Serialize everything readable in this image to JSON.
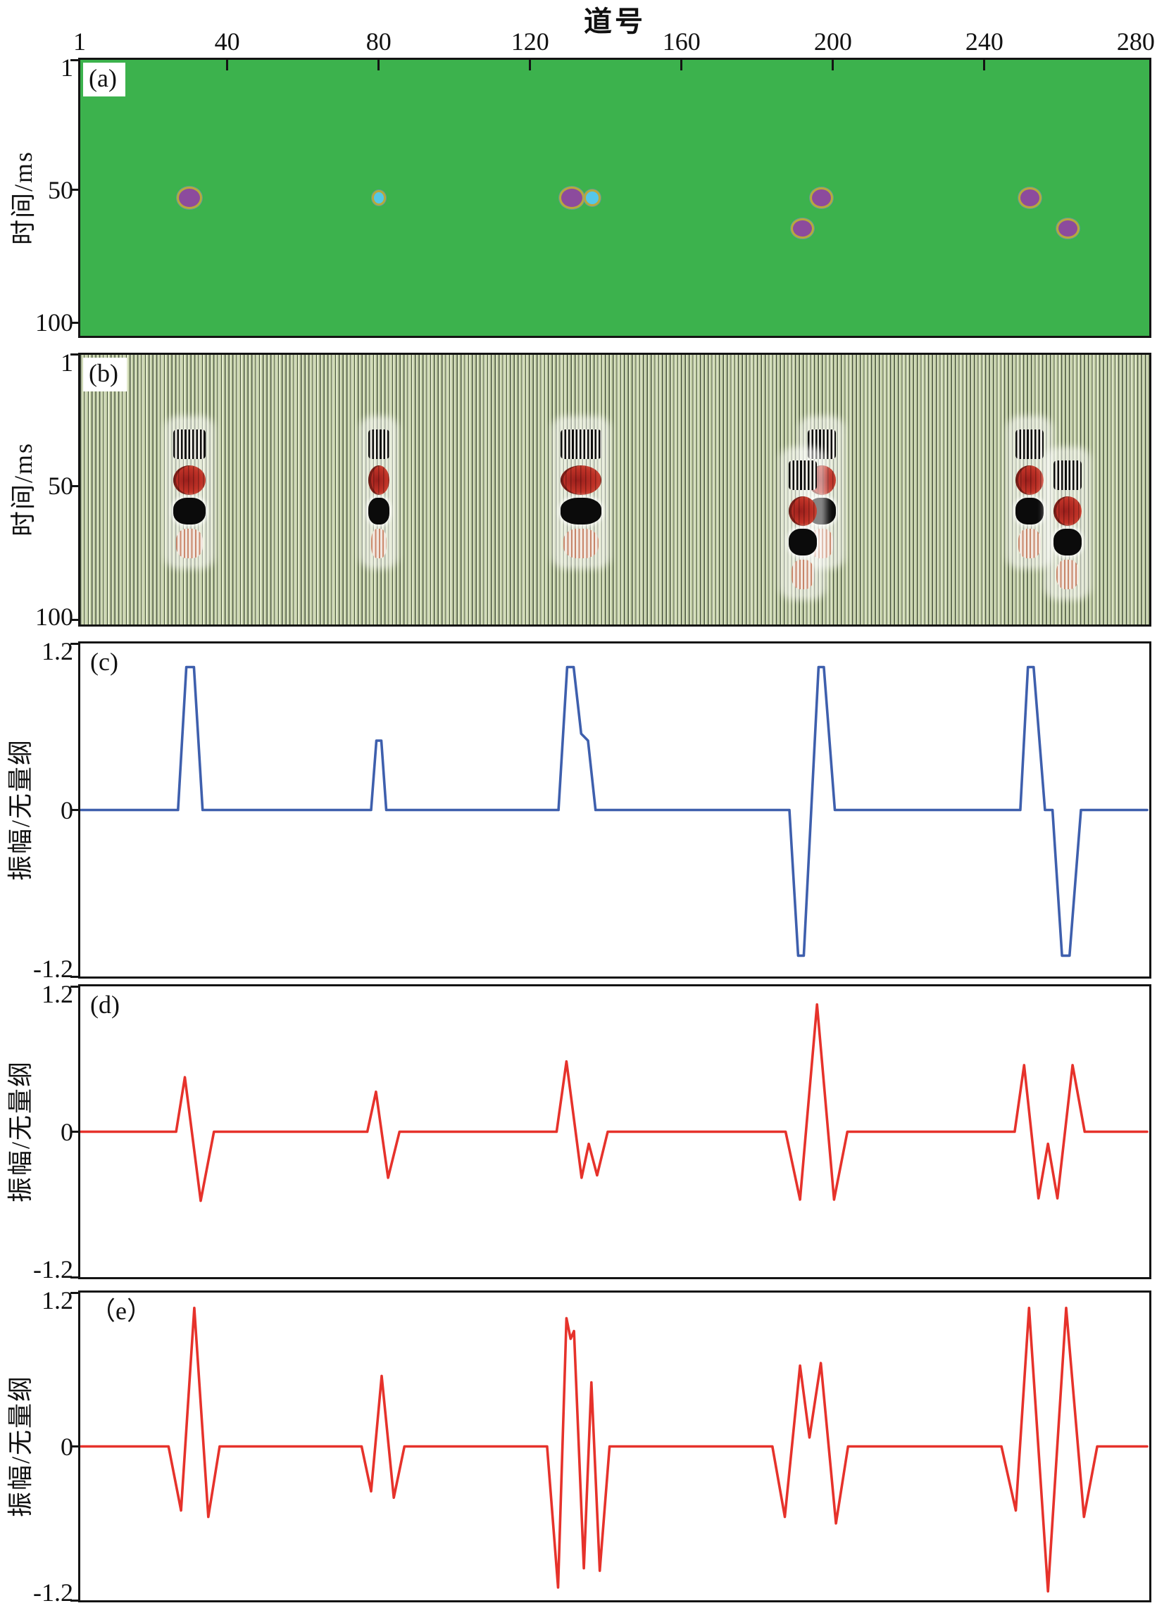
{
  "figure": {
    "title": "道号",
    "x_ticks": [
      "1",
      "40",
      "80",
      "120",
      "160",
      "200",
      "240",
      "280"
    ],
    "colors": {
      "model_background_green": "#3cb24d",
      "anomaly_purple": "#8c4b9d",
      "anomaly_cyan": "#55c7e9",
      "anomaly_ring_yellow": "#b8a93c",
      "curve_blue": "#3e5fad",
      "curve_red": "#e6322b",
      "wiggle_stripe_dark": "#49553e",
      "wiggle_stripe_light": "#e2e9cd",
      "frame_black": "#141414"
    }
  },
  "panels": {
    "a": {
      "tag": "(a)",
      "y_label": "时间/ms",
      "y_ticks": [
        "1",
        "50",
        "100"
      ]
    },
    "b": {
      "tag": "(b)",
      "y_label": "时间/ms",
      "y_ticks": [
        "1",
        "50",
        "100"
      ]
    },
    "c": {
      "tag": "(c)",
      "y_label": "振幅/无量纲",
      "y_ticks": [
        "1.2",
        "0",
        "-1.2"
      ]
    },
    "d": {
      "tag": "(d)",
      "y_label": "振幅/无量纲",
      "y_ticks": [
        "1.2",
        "0",
        "-1.2"
      ]
    },
    "e": {
      "tag": "（e）",
      "y_label": "振幅/无量纲",
      "y_ticks": [
        "1.2",
        "0",
        "-1.2"
      ]
    }
  },
  "chart_data": [
    {
      "panel": "a",
      "type": "heatmap",
      "title": "anomaly model section",
      "xlabel": "道号",
      "ylabel": "时间/ms",
      "x_range": [
        1,
        280
      ],
      "y_range": [
        1,
        100
      ],
      "background_value_color": "#3cb24d",
      "anomalies": [
        {
          "trace": 30,
          "time_ms": 53,
          "color": "purple",
          "w": 36,
          "h": 32
        },
        {
          "trace": 80,
          "time_ms": 53,
          "color": "cyan",
          "w": 20,
          "h": 22
        },
        {
          "trace": 131,
          "time_ms": 53,
          "color": "purple",
          "w": 36,
          "h": 32
        },
        {
          "trace": 136.5,
          "time_ms": 53,
          "color": "cyan",
          "w": 24,
          "h": 24
        },
        {
          "trace": 197,
          "time_ms": 53,
          "color": "purple",
          "w": 33,
          "h": 30
        },
        {
          "trace": 192,
          "time_ms": 64.5,
          "color": "purple",
          "w": 33,
          "h": 29
        },
        {
          "trace": 252,
          "time_ms": 53,
          "color": "purple",
          "w": 33,
          "h": 30
        },
        {
          "trace": 262,
          "time_ms": 64.5,
          "color": "purple",
          "w": 33,
          "h": 29
        }
      ]
    },
    {
      "panel": "b",
      "type": "heatmap",
      "title": "synthetic seismic wiggle section",
      "xlabel": "道号",
      "ylabel": "时间/ms",
      "x_range": [
        1,
        280
      ],
      "y_range": [
        1,
        100
      ],
      "events": [
        {
          "trace": 30,
          "time_ms": 53,
          "w": 46
        },
        {
          "trace": 80,
          "time_ms": 53,
          "w": 30
        },
        {
          "trace": 133.5,
          "time_ms": 53,
          "w": 58
        },
        {
          "trace": 197,
          "time_ms": 53,
          "w": 40
        },
        {
          "trace": 192,
          "time_ms": 64.5,
          "w": 40
        },
        {
          "trace": 252,
          "time_ms": 53,
          "w": 40
        },
        {
          "trace": 262,
          "time_ms": 64.5,
          "w": 40
        }
      ]
    },
    {
      "panel": "c",
      "type": "line",
      "color": "#3e5fad",
      "ylabel": "振幅/无量纲",
      "ylim": [
        -1.2,
        1.2
      ],
      "x_range": [
        1,
        280
      ],
      "grid": false,
      "points": [
        [
          1,
          0
        ],
        [
          27,
          0
        ],
        [
          29.2,
          1.03
        ],
        [
          31.2,
          1.03
        ],
        [
          33.5,
          0
        ],
        [
          78,
          0
        ],
        [
          79.4,
          0.5
        ],
        [
          80.7,
          0.5
        ],
        [
          82,
          0
        ],
        [
          127.5,
          0
        ],
        [
          129.8,
          1.03
        ],
        [
          131.5,
          1.03
        ],
        [
          133.5,
          0.55
        ],
        [
          135.3,
          0.5
        ],
        [
          137.3,
          0
        ],
        [
          188.5,
          0
        ],
        [
          190.8,
          -1.05
        ],
        [
          192.3,
          -1.05
        ],
        [
          196.2,
          1.03
        ],
        [
          197.6,
          1.03
        ],
        [
          200.5,
          0
        ],
        [
          249.5,
          0
        ],
        [
          251.5,
          1.03
        ],
        [
          253,
          1.03
        ],
        [
          256,
          0
        ],
        [
          258,
          0
        ],
        [
          260.5,
          -1.05
        ],
        [
          262.5,
          -1.05
        ],
        [
          265.5,
          0
        ],
        [
          283,
          0
        ]
      ]
    },
    {
      "panel": "d",
      "type": "line",
      "color": "#e6322b",
      "ylabel": "振幅/无量纲",
      "ylim": [
        -1.2,
        1.2
      ],
      "x_range": [
        1,
        280
      ],
      "grid": false,
      "points": [
        [
          1,
          0
        ],
        [
          26.5,
          0
        ],
        [
          28.8,
          0.45
        ],
        [
          33,
          -0.57
        ],
        [
          36.5,
          0
        ],
        [
          77,
          0
        ],
        [
          79.3,
          0.33
        ],
        [
          82.5,
          -0.38
        ],
        [
          85.5,
          0
        ],
        [
          127,
          0
        ],
        [
          129.6,
          0.58
        ],
        [
          133.6,
          -0.38
        ],
        [
          135.5,
          -0.1
        ],
        [
          137.7,
          -0.36
        ],
        [
          140.5,
          0
        ],
        [
          187.5,
          0
        ],
        [
          191.3,
          -0.56
        ],
        [
          195.8,
          1.05
        ],
        [
          200.3,
          -0.56
        ],
        [
          203.8,
          0
        ],
        [
          248,
          0
        ],
        [
          250.5,
          0.55
        ],
        [
          254.3,
          -0.55
        ],
        [
          256.8,
          -0.1
        ],
        [
          259.3,
          -0.55
        ],
        [
          263.3,
          0.55
        ],
        [
          266.5,
          0
        ],
        [
          283,
          0
        ]
      ]
    },
    {
      "panel": "e",
      "type": "line",
      "color": "#e6322b",
      "ylabel": "振幅/无量纲",
      "ylim": [
        -1.2,
        1.2
      ],
      "x_range": [
        1,
        280
      ],
      "grid": false,
      "points": [
        [
          1,
          0
        ],
        [
          24.5,
          0
        ],
        [
          27.8,
          -0.5
        ],
        [
          31.3,
          1.08
        ],
        [
          35,
          -0.55
        ],
        [
          38,
          0
        ],
        [
          75.5,
          0
        ],
        [
          78,
          -0.35
        ],
        [
          80.8,
          0.55
        ],
        [
          84,
          -0.4
        ],
        [
          86.8,
          0
        ],
        [
          124.5,
          0
        ],
        [
          127.4,
          -1.1
        ],
        [
          129.6,
          1.0
        ],
        [
          130.7,
          0.84
        ],
        [
          131.6,
          0.9
        ],
        [
          134.2,
          -0.95
        ],
        [
          136.2,
          0.5
        ],
        [
          138.4,
          -0.97
        ],
        [
          141,
          0
        ],
        [
          184,
          0
        ],
        [
          187.3,
          -0.55
        ],
        [
          191.3,
          0.63
        ],
        [
          193.8,
          0.07
        ],
        [
          196.8,
          0.65
        ],
        [
          200.8,
          -0.6
        ],
        [
          204,
          0
        ],
        [
          244.5,
          0
        ],
        [
          248.3,
          -0.5
        ],
        [
          251.8,
          1.08
        ],
        [
          256.8,
          -1.13
        ],
        [
          261.6,
          1.08
        ],
        [
          266.3,
          -0.55
        ],
        [
          269.8,
          0
        ],
        [
          283,
          0
        ]
      ]
    }
  ]
}
